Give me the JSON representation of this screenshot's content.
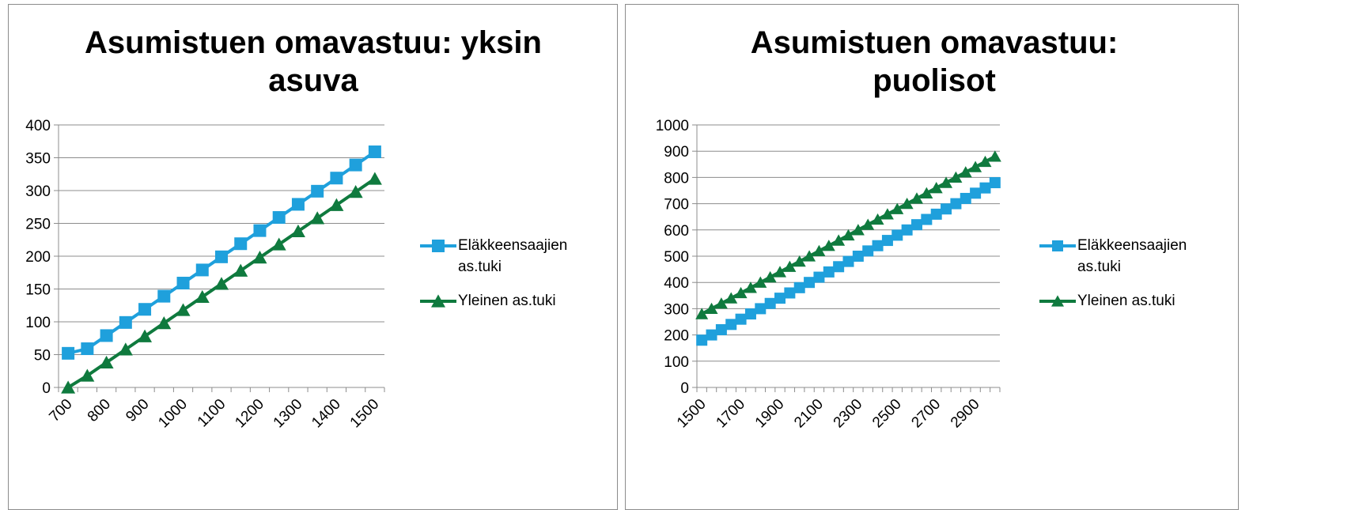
{
  "chart_data": [
    {
      "type": "line",
      "title": "Asumistuen omavastuu: yksin asuva",
      "categories": [
        700,
        null,
        800,
        null,
        900,
        null,
        1000,
        null,
        1100,
        null,
        1200,
        null,
        1300,
        null,
        1400,
        null,
        1500
      ],
      "series": [
        {
          "name": "Eläkkeensaajien as.tuki",
          "color": "#1fa0dc",
          "marker": "square",
          "values": [
            52,
            59,
            79,
            99,
            119,
            139,
            159,
            179,
            199,
            219,
            239,
            259,
            279,
            299,
            319,
            339,
            359
          ]
        },
        {
          "name": "Yleinen as.tuki",
          "color": "#0f7a3e",
          "marker": "triangle",
          "values": [
            0,
            18,
            38,
            58,
            78,
            98,
            118,
            138,
            158,
            178,
            198,
            218,
            238,
            258,
            278,
            298,
            318
          ]
        }
      ],
      "ylim": [
        0,
        400
      ],
      "yticks": [
        0,
        50,
        100,
        150,
        200,
        250,
        300,
        350,
        400
      ],
      "grid": true,
      "legend": "right"
    },
    {
      "type": "line",
      "title": "Asumistuen omavastuu: puolisot",
      "categories": [
        1500,
        null,
        null,
        null,
        1700,
        null,
        null,
        null,
        1900,
        null,
        null,
        null,
        2100,
        null,
        null,
        null,
        2300,
        null,
        null,
        null,
        2500,
        null,
        null,
        null,
        2700,
        null,
        null,
        null,
        2900,
        null,
        null
      ],
      "series": [
        {
          "name": "Eläkkeensaajien as.tuki",
          "color": "#1fa0dc",
          "marker": "square",
          "values": [
            180,
            200,
            220,
            240,
            260,
            280,
            300,
            320,
            340,
            360,
            380,
            400,
            420,
            440,
            460,
            480,
            500,
            520,
            540,
            560,
            580,
            600,
            620,
            640,
            660,
            680,
            700,
            720,
            740,
            760,
            780
          ]
        },
        {
          "name": "Yleinen as.tuki",
          "color": "#0f7a3e",
          "marker": "triangle",
          "values": [
            280,
            300,
            320,
            340,
            360,
            380,
            400,
            420,
            440,
            460,
            480,
            500,
            520,
            540,
            560,
            580,
            600,
            620,
            640,
            660,
            680,
            700,
            720,
            740,
            760,
            780,
            800,
            820,
            840,
            860,
            880
          ]
        }
      ],
      "ylim": [
        0,
        1000
      ],
      "yticks": [
        0,
        100,
        200,
        300,
        400,
        500,
        600,
        700,
        800,
        900,
        1000
      ],
      "grid": true,
      "legend": "right"
    }
  ]
}
